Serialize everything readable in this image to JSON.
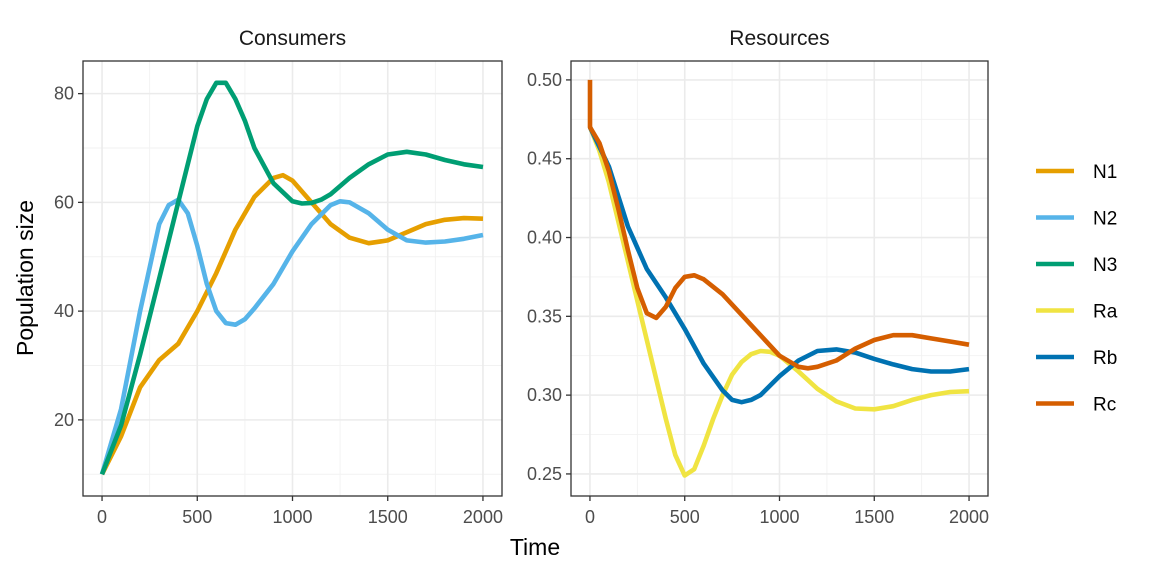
{
  "chart_data": {
    "type": "line",
    "xlabel": "Time",
    "ylabel": "Population size",
    "legend": {
      "position": "right",
      "entries": [
        {
          "name": "N1",
          "color": "#E69F00"
        },
        {
          "name": "N2",
          "color": "#56B4E9"
        },
        {
          "name": "N3",
          "color": "#009E73"
        },
        {
          "name": "Ra",
          "color": "#F0E442"
        },
        {
          "name": "Rb",
          "color": "#0072B2"
        },
        {
          "name": "Rc",
          "color": "#D55E00"
        }
      ]
    },
    "panels": [
      {
        "title": "Consumers",
        "xlim": [
          -100,
          2100
        ],
        "ylim": [
          6,
          86
        ],
        "xticks": [
          0,
          500,
          1000,
          1500,
          2000
        ],
        "xtick_labels": [
          "0",
          "500",
          "1000",
          "1500",
          "2000"
        ],
        "yticks": [
          20,
          40,
          60,
          80
        ],
        "ytick_labels": [
          "20",
          "40",
          "60",
          "80"
        ],
        "grid": true,
        "series": [
          {
            "name": "N1",
            "x": [
              0,
              100,
              200,
              300,
              400,
              500,
              600,
              700,
              800,
              900,
              950,
              1000,
              1100,
              1200,
              1300,
              1400,
              1500,
              1600,
              1700,
              1800,
              1900,
              2000
            ],
            "y": [
              10,
              17,
              26,
              31,
              34,
              40,
              47,
              55,
              61,
              64.5,
              65,
              64,
              60,
              56,
              53.5,
              52.5,
              53,
              54.5,
              56,
              56.8,
              57.1,
              57
            ]
          },
          {
            "name": "N2",
            "x": [
              0,
              100,
              200,
              300,
              350,
              400,
              450,
              500,
              550,
              600,
              650,
              700,
              750,
              800,
              900,
              1000,
              1100,
              1200,
              1250,
              1300,
              1400,
              1500,
              1600,
              1700,
              1800,
              1900,
              2000
            ],
            "y": [
              10,
              22,
              40,
              56,
              59.5,
              60.5,
              58,
              52,
              45,
              40,
              37.8,
              37.5,
              38.5,
              40.5,
              45,
              51,
              56,
              59.5,
              60.2,
              60,
              58,
              55,
              53,
              52.6,
              52.8,
              53.3,
              54
            ]
          },
          {
            "name": "N3",
            "x": [
              0,
              100,
              200,
              300,
              400,
              500,
              550,
              600,
              650,
              700,
              750,
              800,
              900,
              1000,
              1050,
              1100,
              1150,
              1200,
              1300,
              1400,
              1500,
              1600,
              1700,
              1800,
              1900,
              2000
            ],
            "y": [
              10,
              19,
              32,
              46,
              60,
              74,
              79,
              82,
              82,
              79,
              75,
              70,
              63.5,
              60.2,
              59.8,
              59.9,
              60.5,
              61.5,
              64.5,
              67,
              68.8,
              69.3,
              68.8,
              67.8,
              67,
              66.5
            ]
          }
        ]
      },
      {
        "title": "Resources",
        "xlim": [
          -100,
          2100
        ],
        "ylim": [
          0.236,
          0.512
        ],
        "xticks": [
          0,
          500,
          1000,
          1500,
          2000
        ],
        "xtick_labels": [
          "0",
          "500",
          "1000",
          "1500",
          "2000"
        ],
        "yticks": [
          0.25,
          0.3,
          0.35,
          0.4,
          0.45,
          0.5
        ],
        "ytick_labels": [
          "0.25",
          "0.30",
          "0.35",
          "0.40",
          "0.45",
          "0.50"
        ],
        "grid": true,
        "series": [
          {
            "name": "Ra",
            "x": [
              0,
              50,
              100,
              150,
              200,
              250,
              300,
              350,
              400,
              450,
              500,
              550,
              600,
              650,
              700,
              750,
              800,
              850,
              900,
              950,
              1000,
              1100,
              1200,
              1300,
              1400,
              1500,
              1600,
              1700,
              1800,
              1900,
              2000
            ],
            "y": [
              0.47,
              0.455,
              0.435,
              0.41,
              0.385,
              0.36,
              0.335,
              0.31,
              0.285,
              0.262,
              0.249,
              0.253,
              0.268,
              0.285,
              0.3,
              0.313,
              0.321,
              0.326,
              0.328,
              0.3275,
              0.325,
              0.315,
              0.304,
              0.296,
              0.2915,
              0.291,
              0.293,
              0.297,
              0.3,
              0.302,
              0.3025
            ]
          },
          {
            "name": "Rb",
            "x": [
              0,
              100,
              200,
              300,
              400,
              500,
              600,
              700,
              750,
              800,
              850,
              900,
              1000,
              1100,
              1200,
              1300,
              1400,
              1500,
              1600,
              1700,
              1800,
              1900,
              2000
            ],
            "y": [
              0.47,
              0.445,
              0.407,
              0.38,
              0.362,
              0.342,
              0.32,
              0.303,
              0.297,
              0.2955,
              0.297,
              0.3,
              0.312,
              0.322,
              0.328,
              0.329,
              0.327,
              0.323,
              0.3195,
              0.3165,
              0.315,
              0.315,
              0.3165
            ]
          },
          {
            "name": "Rc",
            "x": [
              0,
              0,
              50,
              100,
              150,
              200,
              250,
              300,
              350,
              400,
              450,
              500,
              550,
              600,
              700,
              800,
              900,
              1000,
              1100,
              1150,
              1200,
              1300,
              1400,
              1500,
              1600,
              1700,
              1800,
              1900,
              2000
            ],
            "y": [
              0.5,
              0.47,
              0.46,
              0.442,
              0.418,
              0.392,
              0.368,
              0.352,
              0.349,
              0.356,
              0.368,
              0.375,
              0.376,
              0.3735,
              0.364,
              0.351,
              0.338,
              0.325,
              0.318,
              0.317,
              0.318,
              0.322,
              0.3295,
              0.335,
              0.338,
              0.338,
              0.336,
              0.334,
              0.332
            ]
          }
        ]
      }
    ]
  }
}
